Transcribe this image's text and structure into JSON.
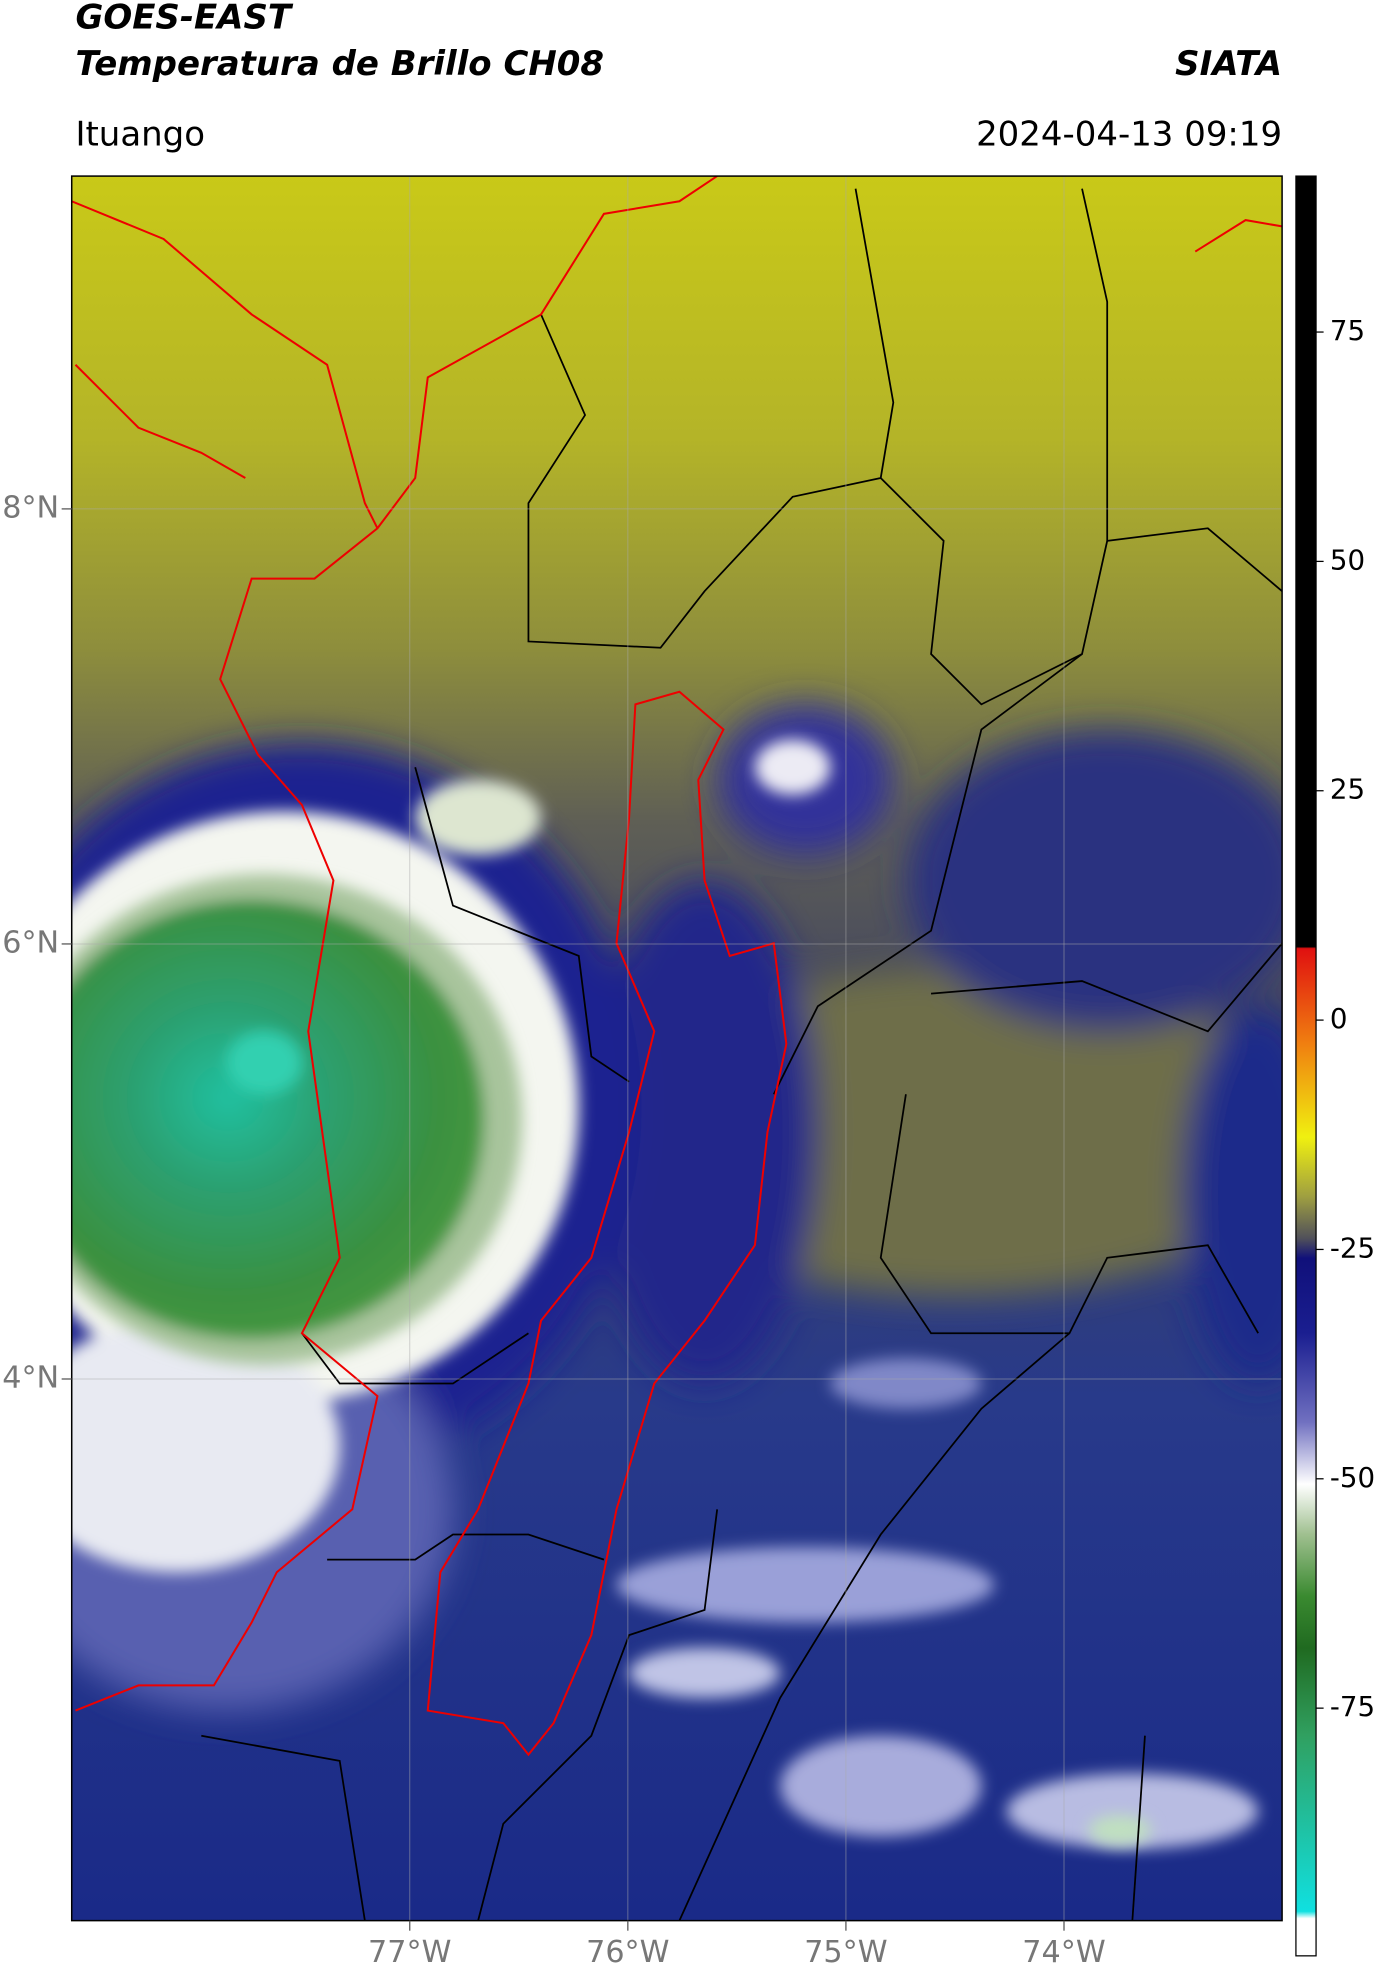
{
  "header": {
    "title": "GOES-EAST",
    "subtitle": "Temperatura de Brillo CH08",
    "source": "SIATA",
    "location": "Ituango",
    "datetime": "2024-04-13 09:19"
  },
  "map": {
    "xlim": [
      -78.55,
      -73.0
    ],
    "ylim": [
      1.51,
      9.53
    ],
    "xticks": [
      {
        "value": -77,
        "label": "77°W"
      },
      {
        "value": -76,
        "label": "76°W"
      },
      {
        "value": -75,
        "label": "75°W"
      },
      {
        "value": -74,
        "label": "74°W"
      }
    ],
    "yticks": [
      {
        "value": 8,
        "label": "8°N"
      },
      {
        "value": 6,
        "label": "6°N"
      },
      {
        "value": 4,
        "label": "4°N"
      }
    ],
    "grid": true
  },
  "colorbar": {
    "lim": [
      -102,
      92
    ],
    "ticks": [
      75,
      50,
      25,
      0,
      -25,
      -50,
      -75
    ]
  }
}
